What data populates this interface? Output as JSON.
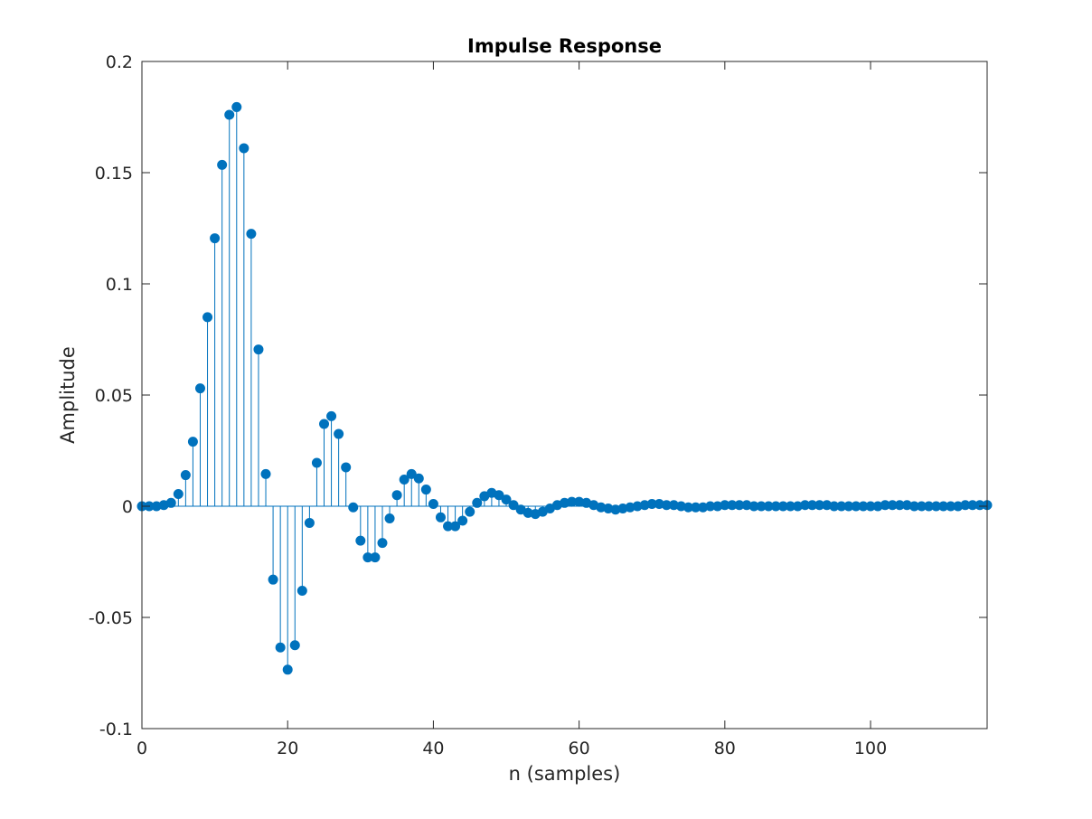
{
  "chart_data": {
    "type": "stem",
    "title": "Impulse Response",
    "xlabel": "n (samples)",
    "ylabel": "Amplitude",
    "xlim": [
      0,
      116
    ],
    "ylim": [
      -0.1,
      0.2
    ],
    "xticks": [
      0,
      20,
      40,
      60,
      80,
      100
    ],
    "yticks": [
      -0.1,
      -0.05,
      0,
      0.05,
      0.1,
      0.15,
      0.2
    ],
    "xtick_labels": [
      "0",
      "20",
      "40",
      "60",
      "80",
      "100"
    ],
    "ytick_labels": [
      "-0.1",
      "-0.05",
      "0",
      "0.05",
      "0.1",
      "0.15",
      "0.2"
    ],
    "grid": false,
    "color": "#0072BD",
    "x_start": 0,
    "values": [
      0,
      0,
      0,
      0.0005,
      0.0015,
      0.0055,
      0.014,
      0.029,
      0.053,
      0.085,
      0.1205,
      0.1535,
      0.176,
      0.1795,
      0.161,
      0.1225,
      0.0705,
      0.0145,
      -0.033,
      -0.0635,
      -0.0735,
      -0.0625,
      -0.038,
      -0.0075,
      0.0195,
      0.037,
      0.0405,
      0.0325,
      0.0175,
      -0.0005,
      -0.0155,
      -0.023,
      -0.023,
      -0.0165,
      -0.0055,
      0.005,
      0.012,
      0.0145,
      0.0125,
      0.0075,
      0.001,
      -0.005,
      -0.009,
      -0.009,
      -0.0065,
      -0.0025,
      0.0015,
      0.0045,
      0.006,
      0.005,
      0.003,
      0.0005,
      -0.0015,
      -0.003,
      -0.0035,
      -0.0025,
      -0.001,
      0.0005,
      0.0015,
      0.002,
      0.002,
      0.0015,
      0.0005,
      -0.0005,
      -0.001,
      -0.0015,
      -0.001,
      -0.0005,
      0,
      0.0005,
      0.001,
      0.001,
      0.0005,
      0.0005,
      0,
      -0.0005,
      -0.0005,
      -0.0005,
      0,
      0,
      0.0005,
      0.0005,
      0.0005,
      0.0005,
      0,
      0,
      0,
      0,
      0,
      0,
      0,
      0.0005,
      0.0005,
      0.0005,
      0.0005,
      0,
      0,
      0,
      0,
      0,
      0,
      0,
      0.0005,
      0.0005,
      0.0005,
      0.0005,
      0,
      0,
      0,
      0,
      0,
      0,
      0,
      0.0005,
      0.0005,
      0.0005,
      0.0005
    ]
  }
}
